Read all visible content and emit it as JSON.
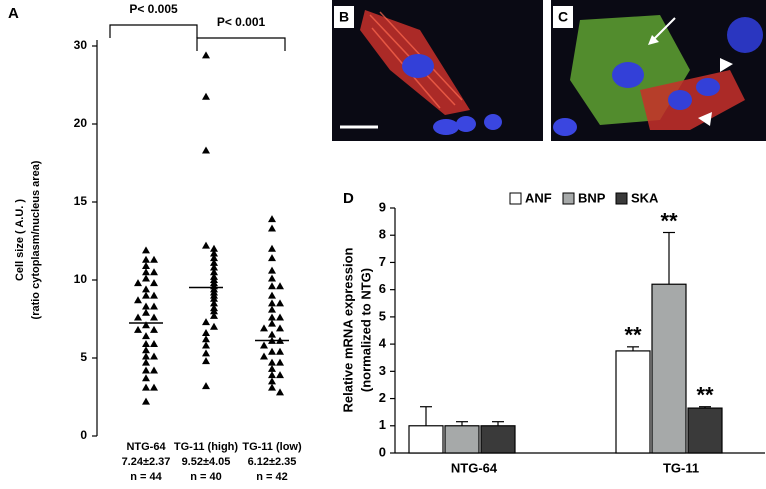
{
  "panels": [
    {
      "label": "B"
    },
    {
      "label": "C"
    }
  ],
  "chart_data": [
    {
      "type": "strip",
      "label": "A",
      "y_label": [
        "Cell size ( A.U. )",
        "(ratio cytoplasm/nucleus area)"
      ],
      "categories": [
        "NTG-64",
        "TG-11 (high)",
        "TG-11 (low)"
      ],
      "means": [
        7.24,
        9.52,
        6.12
      ],
      "value_labels": [
        "7.24±2.37",
        "9.52±4.05",
        "6.12±2.35"
      ],
      "sample_sizes": [
        "n = 44",
        "n = 40",
        "n = 42"
      ],
      "annotations": [
        "P< 0.005",
        "P< 0.001"
      ],
      "color": "#000000",
      "points": [
        [
          11.9,
          11.3,
          11.3,
          10.9,
          10.5,
          10.5,
          10.1,
          9.8,
          9.8,
          9.4,
          9.0,
          9.0,
          8.7,
          8.3,
          8.3,
          7.9,
          7.6,
          7.6,
          7.1,
          6.8,
          6.8,
          6.4,
          5.9,
          5.9,
          5.5,
          5.1,
          5.1,
          4.7,
          4.2,
          4.2,
          3.7,
          3.1,
          3.1,
          2.2
        ],
        [
          28.8,
          23.5,
          18.3,
          12.2,
          12.0,
          11.7,
          11.4,
          11.1,
          10.8,
          10.5,
          10.2,
          10.0,
          9.8,
          9.6,
          9.4,
          9.2,
          9.0,
          8.8,
          8.5,
          8.2,
          8.0,
          7.7,
          7.3,
          7.0,
          6.6,
          6.2,
          5.8,
          5.3,
          4.8,
          3.2
        ],
        [
          13.9,
          13.3,
          12.0,
          11.4,
          10.6,
          10.1,
          9.6,
          9.6,
          9.0,
          8.5,
          8.5,
          8.1,
          7.6,
          7.6,
          7.2,
          6.9,
          6.9,
          6.5,
          6.1,
          6.1,
          5.8,
          5.4,
          5.4,
          5.1,
          4.7,
          4.7,
          4.3,
          3.9,
          3.9,
          3.5,
          3.1,
          2.8
        ]
      ],
      "ylim": [
        0,
        30
      ],
      "yticks": [
        0,
        5,
        10,
        15,
        20,
        30
      ]
    },
    {
      "type": "bar",
      "label": "D",
      "y_label": [
        "Relative mRNA expression",
        "(normalized to NTG)"
      ],
      "categories": [
        "NTG-64",
        "TG-11"
      ],
      "series": [
        {
          "name": "ANF",
          "color": "#ffffff",
          "values": [
            1.0,
            3.75
          ],
          "errors": [
            0.7,
            0.15
          ],
          "annotations": [
            null,
            "**"
          ]
        },
        {
          "name": "BNP",
          "color": "#a6a9a9",
          "values": [
            1.0,
            6.2
          ],
          "errors": [
            0.15,
            1.9
          ],
          "annotations": [
            null,
            "**"
          ]
        },
        {
          "name": "SKA",
          "color": "#3a3a3a",
          "values": [
            1.0,
            1.65
          ],
          "errors": [
            0.15,
            0.05
          ],
          "annotations": [
            null,
            "**"
          ]
        }
      ],
      "ylim": [
        0,
        9
      ],
      "yticks": [
        0,
        1,
        2,
        3,
        4,
        5,
        6,
        7,
        8,
        9
      ]
    }
  ]
}
